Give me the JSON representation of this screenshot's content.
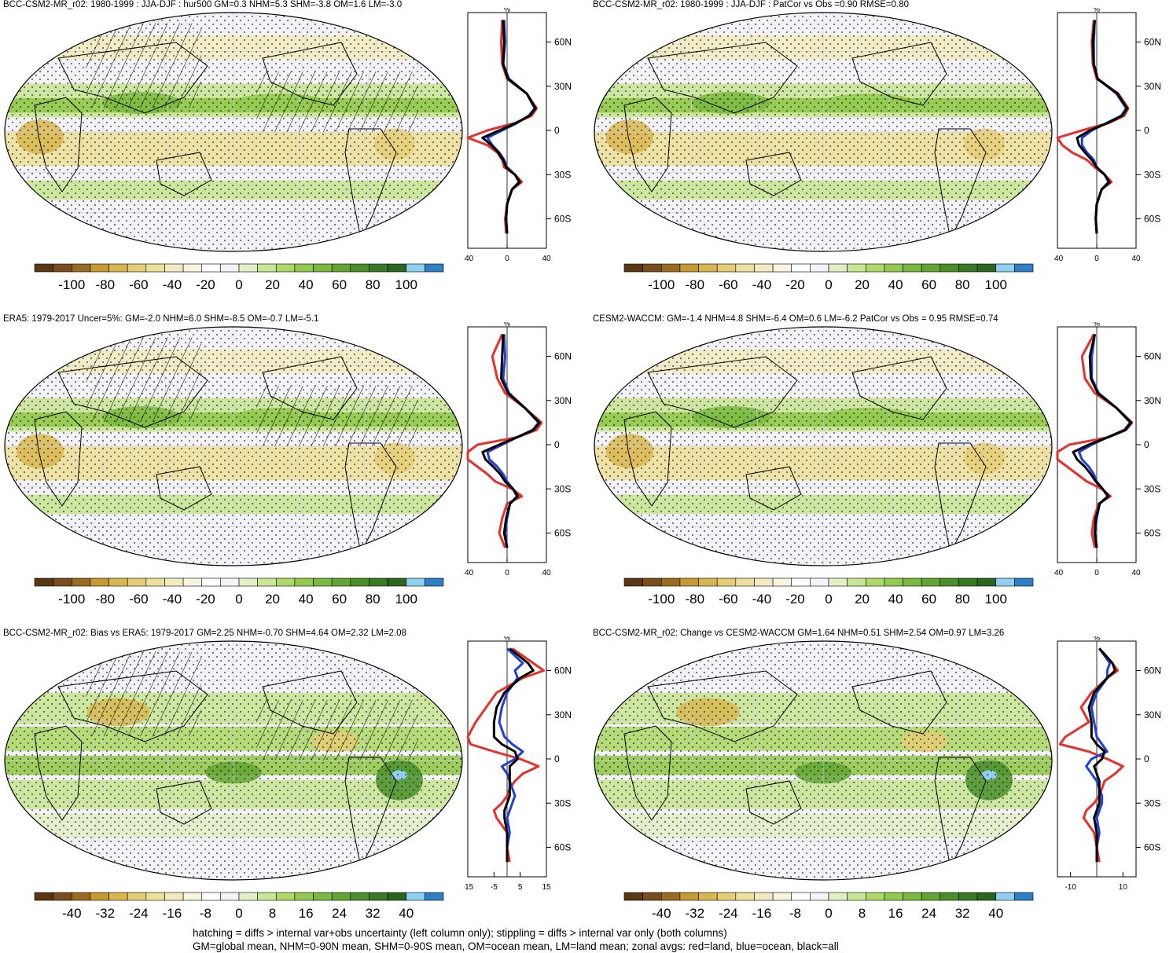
{
  "colors": {
    "land": "#e8302a",
    "ocean": "#1f3fd9",
    "all": "#000000",
    "brown_scale": [
      "#5a3614",
      "#7a4e1c",
      "#9a6b22",
      "#c59a32",
      "#d8b751",
      "#e5cd77",
      "#ede09d",
      "#f2ebc1",
      "#f7f4df"
    ],
    "white": [
      "#ffffff",
      "#f4f4f8"
    ],
    "green_scale": [
      "#e2f0c8",
      "#c9e596",
      "#afd86c",
      "#93c94e",
      "#7ab83f",
      "#63a434",
      "#4a8f2a",
      "#3a7a24",
      "#2a6620"
    ],
    "blue_scale": [
      "#8ecff2",
      "#2f7fc4"
    ]
  },
  "panels": [
    {
      "id": "top-left",
      "title": "BCC-CSM2-MR_r02: 1980-1999 : JJA-DJF : hur500 GM=0.3 NHM=5.3 SHM=-3.8 OM=1.6 LM=-3.0",
      "hatched": true,
      "zonal_unit": "%",
      "zonal_xticks": [
        "-40",
        "0",
        "40"
      ],
      "zonal_yticks": [
        "60N",
        "30N",
        "0",
        "30S",
        "60S"
      ],
      "colorbar_ticks": [
        "-100",
        "-80",
        "-60",
        "-40",
        "-20",
        "0",
        "20",
        "40",
        "60",
        "80",
        "100"
      ]
    },
    {
      "id": "top-right",
      "title": "BCC-CSM2-MR_r02: 1980-1999 : JJA-DJF : PatCor vs Obs =0.90 RMSE=0.80",
      "hatched": false,
      "zonal_unit": "%",
      "zonal_xticks": [
        "-40",
        "0",
        "40"
      ],
      "zonal_yticks": [
        "60N",
        "30N",
        "0",
        "30S",
        "60S"
      ],
      "colorbar_ticks": [
        "-100",
        "-80",
        "-60",
        "-40",
        "-20",
        "0",
        "20",
        "40",
        "60",
        "80",
        "100"
      ]
    },
    {
      "id": "mid-left",
      "title": "ERA5: 1979-2017 Uncer=5%: GM=-2.0 NHM=6.0 SHM=-8.5 OM=-0.7 LM=-5.1",
      "hatched": true,
      "zonal_unit": "%",
      "zonal_xticks": [
        "-40",
        "0",
        "40"
      ],
      "zonal_yticks": [
        "60N",
        "30N",
        "0",
        "30S",
        "60S"
      ],
      "colorbar_ticks": [
        "-100",
        "-80",
        "-60",
        "-40",
        "-20",
        "0",
        "20",
        "40",
        "60",
        "80",
        "100"
      ]
    },
    {
      "id": "mid-right",
      "title": "CESM2-WACCM: GM=-1.4 NHM=4.8 SHM=-6.4 OM=0.6 LM=-6.2 PatCor vs Obs = 0.95 RMSE=0.74",
      "hatched": false,
      "zonal_unit": "%",
      "zonal_xticks": [
        "-40",
        "0",
        "40"
      ],
      "zonal_yticks": [
        "60N",
        "30N",
        "0",
        "30S",
        "60S"
      ],
      "colorbar_ticks": [
        "-100",
        "-80",
        "-60",
        "-40",
        "-20",
        "0",
        "20",
        "40",
        "60",
        "80",
        "100"
      ]
    },
    {
      "id": "bottom-left",
      "title": "BCC-CSM2-MR_r02: Bias vs ERA5: 1979-2017 GM=2.25 NHM=-0.70 SHM=4.64 OM=2.32 LM=2.08",
      "hatched": true,
      "zonal_unit": "%",
      "zonal_xticks": [
        "-15",
        "-5",
        "5",
        "15"
      ],
      "zonal_yticks": [
        "60N",
        "30N",
        "0",
        "30S",
        "60S"
      ],
      "colorbar_ticks": [
        "-40",
        "-32",
        "-24",
        "-16",
        "-8",
        "0",
        "8",
        "16",
        "24",
        "32",
        "40"
      ]
    },
    {
      "id": "bottom-right",
      "title": "BCC-CSM2-MR_r02: Change vs CESM2-WACCM GM=1.64 NHM=0.51 SHM=2.54 OM=0.97 LM=3.26",
      "hatched": false,
      "zonal_unit": "%",
      "zonal_xticks": [
        "-10",
        "10"
      ],
      "zonal_yticks": [
        "60N",
        "30N",
        "0",
        "30S",
        "60S"
      ],
      "colorbar_ticks": [
        "-40",
        "-32",
        "-24",
        "-16",
        "-8",
        "0",
        "8",
        "16",
        "24",
        "32",
        "40"
      ]
    }
  ],
  "caption": {
    "line1": "hatching = diffs > internal var+obs uncertainty (left column only); stippling = diffs > internal var only (both columns)",
    "line2": "GM=global mean, NHM=0-90N mean, SHM=0-90S mean, OM=ocean mean, LM=land mean; zonal avgs: red=land, blue=ocean, black=all"
  },
  "chart_data": [
    {
      "type": "line",
      "panel": "top-left",
      "xlim": [
        -40,
        40
      ],
      "ylim": [
        -80,
        80
      ],
      "y": [
        75,
        60,
        45,
        35,
        25,
        15,
        10,
        5,
        0,
        -5,
        -10,
        -15,
        -20,
        -25,
        -30,
        -35,
        -40,
        -50,
        -60,
        -70
      ],
      "series": [
        {
          "name": "land",
          "values": [
            -5,
            -6,
            -5,
            0,
            20,
            30,
            25,
            8,
            -20,
            -40,
            -20,
            -10,
            -5,
            -3,
            8,
            15,
            5,
            0,
            -2,
            -1
          ]
        },
        {
          "name": "ocean",
          "values": [
            -3,
            -2,
            -4,
            2,
            20,
            28,
            22,
            10,
            -5,
            -20,
            -15,
            -8,
            -3,
            0,
            8,
            12,
            5,
            0,
            -1,
            0
          ]
        },
        {
          "name": "all",
          "values": [
            -4,
            -3,
            -4,
            1,
            20,
            29,
            23,
            9,
            -8,
            -25,
            -16,
            -9,
            -4,
            -1,
            8,
            13,
            5,
            0,
            -1,
            0
          ]
        }
      ]
    },
    {
      "type": "line",
      "panel": "top-right",
      "xlim": [
        -40,
        40
      ],
      "ylim": [
        -80,
        80
      ],
      "y": [
        75,
        60,
        45,
        35,
        25,
        15,
        10,
        5,
        0,
        -5,
        -10,
        -15,
        -20,
        -25,
        -30,
        -35,
        -40,
        -50,
        -60,
        -70
      ],
      "series": [
        {
          "name": "land",
          "values": [
            -3,
            -5,
            -4,
            0,
            22,
            32,
            28,
            12,
            -15,
            -40,
            -35,
            -25,
            -10,
            -2,
            8,
            15,
            5,
            0,
            -1,
            0
          ]
        },
        {
          "name": "ocean",
          "values": [
            -2,
            -3,
            -3,
            1,
            20,
            30,
            25,
            10,
            -5,
            -15,
            -15,
            -10,
            -3,
            0,
            8,
            12,
            5,
            0,
            -1,
            0
          ]
        },
        {
          "name": "all",
          "values": [
            -2,
            -4,
            -3,
            1,
            21,
            31,
            26,
            11,
            -7,
            -20,
            -18,
            -12,
            -5,
            0,
            8,
            13,
            5,
            0,
            -1,
            0
          ]
        }
      ]
    },
    {
      "type": "line",
      "panel": "mid-left",
      "xlim": [
        -40,
        40
      ],
      "ylim": [
        -80,
        80
      ],
      "y": [
        75,
        60,
        45,
        35,
        25,
        15,
        10,
        5,
        0,
        -5,
        -10,
        -15,
        -20,
        -25,
        -30,
        -35,
        -40,
        -50,
        -60,
        -70
      ],
      "series": [
        {
          "name": "land",
          "values": [
            -5,
            -15,
            -10,
            -2,
            18,
            35,
            30,
            10,
            -30,
            -45,
            -40,
            -30,
            -20,
            -12,
            5,
            15,
            0,
            -5,
            -8,
            -2
          ]
        },
        {
          "name": "ocean",
          "values": [
            -3,
            -2,
            -4,
            2,
            18,
            32,
            26,
            10,
            -5,
            -20,
            -18,
            -10,
            -4,
            0,
            6,
            10,
            3,
            0,
            -2,
            0
          ]
        },
        {
          "name": "all",
          "values": [
            -4,
            -5,
            -6,
            1,
            18,
            33,
            27,
            10,
            -8,
            -25,
            -22,
            -14,
            -7,
            -2,
            6,
            11,
            3,
            -1,
            -3,
            0
          ]
        }
      ]
    },
    {
      "type": "line",
      "panel": "mid-right",
      "xlim": [
        -40,
        40
      ],
      "ylim": [
        -80,
        80
      ],
      "y": [
        75,
        60,
        45,
        35,
        25,
        15,
        10,
        5,
        0,
        -5,
        -10,
        -15,
        -20,
        -25,
        -30,
        -35,
        -40,
        -50,
        -60,
        -70
      ],
      "series": [
        {
          "name": "land",
          "values": [
            -3,
            -15,
            -12,
            -2,
            20,
            36,
            30,
            12,
            -28,
            -45,
            -40,
            -30,
            -20,
            -10,
            5,
            14,
            2,
            -3,
            -5,
            -2
          ]
        },
        {
          "name": "ocean",
          "values": [
            -2,
            -5,
            -5,
            2,
            20,
            34,
            28,
            11,
            -5,
            -18,
            -15,
            -8,
            -3,
            0,
            6,
            11,
            3,
            0,
            -2,
            0
          ]
        },
        {
          "name": "all",
          "values": [
            -2,
            -7,
            -6,
            1,
            20,
            35,
            29,
            11,
            -8,
            -24,
            -20,
            -12,
            -6,
            -1,
            6,
            12,
            3,
            -1,
            -2,
            0
          ]
        }
      ]
    },
    {
      "type": "line",
      "panel": "bottom-left",
      "xlim": [
        -15,
        15
      ],
      "ylim": [
        -80,
        80
      ],
      "y": [
        75,
        65,
        60,
        55,
        45,
        35,
        25,
        15,
        10,
        5,
        0,
        -5,
        -10,
        -15,
        -20,
        -25,
        -30,
        -35,
        -40,
        -50,
        -60,
        -70
      ],
      "series": [
        {
          "name": "land",
          "values": [
            2,
            10,
            14,
            6,
            -4,
            -8,
            -12,
            -16,
            -14,
            -5,
            5,
            12,
            6,
            3,
            1,
            0,
            -2,
            -5,
            -4,
            0,
            0,
            1
          ]
        },
        {
          "name": "ocean",
          "values": [
            0,
            6,
            3,
            4,
            0,
            -2,
            -3,
            -1,
            2,
            6,
            3,
            -2,
            0,
            1,
            2,
            3,
            2,
            1,
            0,
            1,
            0,
            0
          ]
        },
        {
          "name": "all",
          "values": [
            1,
            8,
            10,
            5,
            -1,
            -4,
            -5,
            -5,
            -2,
            3,
            4,
            1,
            1,
            1,
            1,
            1,
            0,
            -1,
            -1,
            0,
            0,
            0
          ]
        }
      ]
    },
    {
      "type": "line",
      "panel": "bottom-right",
      "xlim": [
        -15,
        15
      ],
      "ylim": [
        -80,
        80
      ],
      "y": [
        75,
        65,
        60,
        55,
        45,
        35,
        25,
        15,
        10,
        5,
        0,
        -5,
        -10,
        -15,
        -20,
        -25,
        -30,
        -35,
        -40,
        -50,
        -60,
        -70
      ],
      "series": [
        {
          "name": "land",
          "values": [
            1,
            6,
            8,
            4,
            -2,
            -6,
            -3,
            -12,
            -14,
            -3,
            4,
            10,
            7,
            3,
            2,
            1,
            -1,
            -4,
            -5,
            -1,
            0,
            1
          ]
        },
        {
          "name": "ocean",
          "values": [
            1,
            5,
            4,
            4,
            0,
            -2,
            -1,
            0,
            2,
            4,
            -2,
            -4,
            -2,
            0,
            1,
            2,
            2,
            1,
            0,
            1,
            0,
            0
          ]
        },
        {
          "name": "all",
          "values": [
            1,
            6,
            7,
            4,
            -1,
            -3,
            -2,
            -2,
            0,
            3,
            2,
            -1,
            0,
            1,
            1,
            1,
            1,
            0,
            -1,
            0,
            0,
            0
          ]
        }
      ]
    }
  ]
}
